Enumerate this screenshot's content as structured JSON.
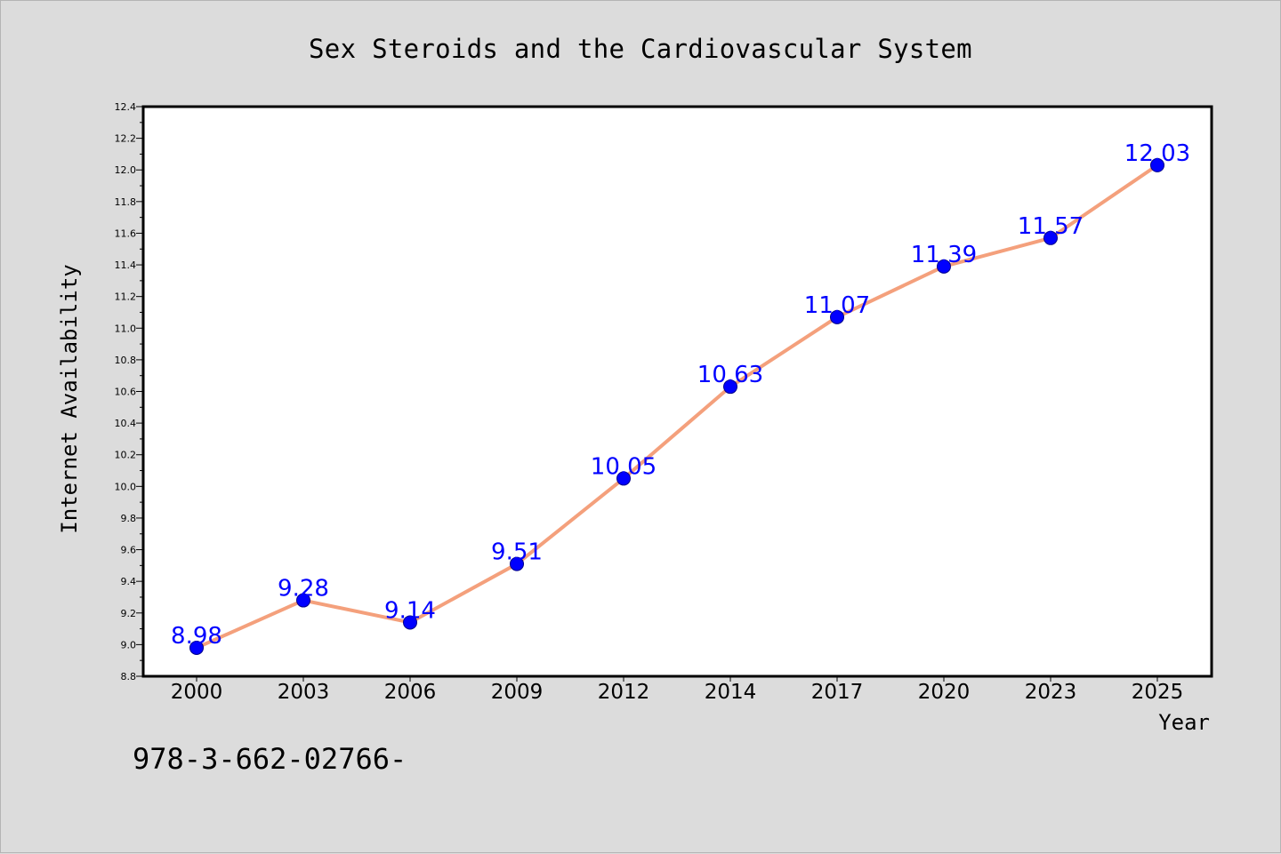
{
  "chart_data": {
    "type": "line",
    "title": "Sex Steroids and the Cardiovascular System",
    "xlabel": "Year",
    "ylabel": "Internet Availability",
    "categories": [
      "2000",
      "2003",
      "2006",
      "2009",
      "2012",
      "2014",
      "2017",
      "2020",
      "2023",
      "2025"
    ],
    "series": [
      {
        "values": [
          8.98,
          9.28,
          9.14,
          9.51,
          10.05,
          10.63,
          11.07,
          11.39,
          11.57,
          12.03
        ],
        "data_labels": [
          "8.98",
          "9.28",
          "9.14",
          "9.51",
          "10.05",
          "10.63",
          "11.07",
          "11.39",
          "11.57",
          "12.03"
        ],
        "line_color": "#f4a07c",
        "marker_color": "#0000ff"
      }
    ],
    "ylim": [
      8.8,
      12.4
    ],
    "yticks": [
      "8.8",
      "9.0",
      "9.2",
      "9.4",
      "9.6",
      "9.8",
      "10.0",
      "10.2",
      "10.4",
      "10.6",
      "10.8",
      "11.0",
      "11.2",
      "11.4",
      "11.6",
      "11.8",
      "12.0",
      "12.2",
      "12.4"
    ],
    "grid": false,
    "legend": "none"
  },
  "footer": {
    "isbn": "978-3-662-02766-"
  },
  "colors": {
    "background": "#dcdcdc",
    "plot_background": "#ffffff",
    "data_label": "#0000ff"
  }
}
